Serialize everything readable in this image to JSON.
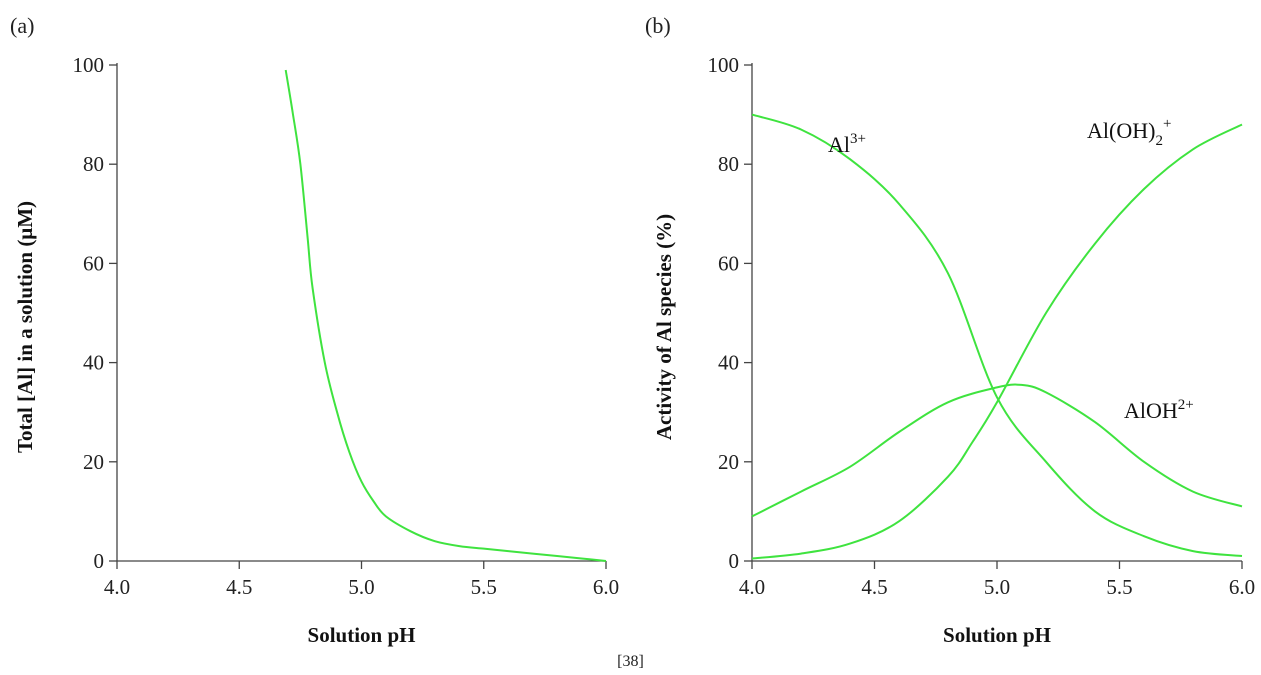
{
  "citation": "[38]",
  "chart_data": [
    {
      "type": "line",
      "panel_label": "(a)",
      "xlabel": "Solution pH",
      "ylabel": "Total [Al] in a solution (μM)",
      "xlim": [
        4.0,
        6.0
      ],
      "ylim": [
        0,
        100
      ],
      "xticks": [
        "4.0",
        "4.5",
        "5.0",
        "5.5",
        "6.0"
      ],
      "yticks": [
        "0",
        "20",
        "40",
        "60",
        "80",
        "100"
      ],
      "grid": false,
      "line_color": "#3fe33f",
      "series": [
        {
          "x": [
            4.69,
            4.72,
            4.75,
            4.78,
            4.8,
            4.85,
            4.9,
            4.95,
            5.0,
            5.05,
            5.1,
            5.2,
            5.3,
            5.4,
            5.5,
            5.6,
            5.7,
            5.8,
            5.9,
            6.0
          ],
          "values": [
            99,
            90,
            80,
            65,
            55,
            40,
            30,
            22,
            16,
            12,
            9,
            6,
            4,
            3,
            2.5,
            2,
            1.5,
            1,
            0.5,
            0
          ]
        }
      ]
    },
    {
      "type": "line",
      "panel_label": "(b)",
      "xlabel": "Solution pH",
      "ylabel": "Activity of Al species (%)",
      "xlim": [
        4.0,
        6.0
      ],
      "ylim": [
        0,
        100
      ],
      "xticks": [
        "4.0",
        "4.5",
        "5.0",
        "5.5",
        "6.0"
      ],
      "yticks": [
        "0",
        "20",
        "40",
        "60",
        "80",
        "100"
      ],
      "grid": false,
      "line_color": "#3fe33f",
      "series": [
        {
          "label": {
            "base": "Al",
            "sup": "3+",
            "sub": ""
          },
          "x": [
            4.0,
            4.2,
            4.4,
            4.6,
            4.8,
            5.0,
            5.2,
            5.4,
            5.6,
            5.8,
            6.0
          ],
          "values": [
            90,
            87,
            81,
            72,
            58,
            33,
            20,
            10,
            5,
            2,
            1
          ]
        },
        {
          "label": {
            "base": "AlOH",
            "sup": "2+",
            "sub": ""
          },
          "x": [
            4.0,
            4.2,
            4.4,
            4.6,
            4.8,
            5.0,
            5.1,
            5.2,
            5.4,
            5.6,
            5.8,
            6.0
          ],
          "values": [
            9,
            14,
            19,
            26,
            32,
            35,
            35.5,
            34,
            28,
            20,
            14,
            11
          ]
        },
        {
          "label": {
            "base": "Al(OH)",
            "sub": "2",
            "sup": "+"
          },
          "x": [
            4.0,
            4.2,
            4.4,
            4.6,
            4.8,
            4.9,
            5.0,
            5.2,
            5.4,
            5.6,
            5.8,
            6.0
          ],
          "values": [
            0.5,
            1.5,
            3.5,
            8,
            17,
            24,
            32,
            50,
            64,
            75,
            83,
            88
          ]
        }
      ]
    }
  ]
}
